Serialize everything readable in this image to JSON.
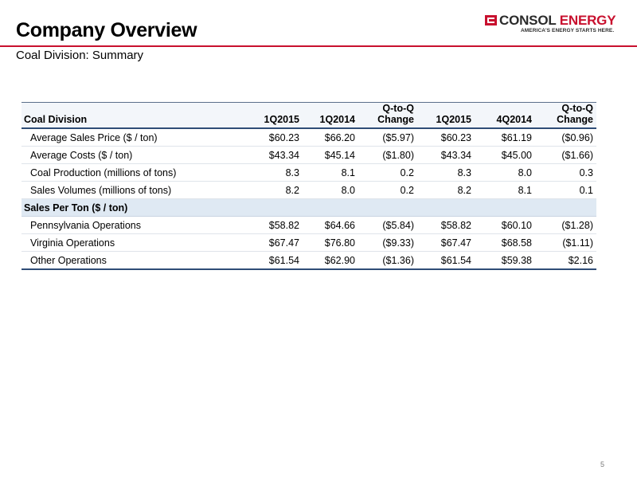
{
  "header": {
    "title": "Company Overview",
    "subtitle": "Coal Division: Summary"
  },
  "logo": {
    "name_part1": "CONSOL",
    "name_part2": "ENERGY",
    "tagline": "AMERICA'S ENERGY STARTS HERE.",
    "colors": {
      "red": "#c8102e",
      "dark": "#2b2b2b"
    }
  },
  "table": {
    "headers": [
      "Coal Division",
      "1Q2015",
      "1Q2014",
      "Q-to-Q Change",
      "1Q2015",
      "4Q2014",
      "Q-to-Q Change"
    ],
    "rows": [
      {
        "label": "Average Sales Price ($ / ton)",
        "values": [
          "$60.23",
          "$66.20",
          "($5.97)",
          "$60.23",
          "$61.19",
          "($0.96)"
        ]
      },
      {
        "label": "Average Costs ($ / ton)",
        "values": [
          "$43.34",
          "$45.14",
          "($1.80)",
          "$43.34",
          "$45.00",
          "($1.66)"
        ]
      },
      {
        "label": "Coal Production (millions of tons)",
        "values": [
          "8.3",
          "8.1",
          "0.2",
          "8.3",
          "8.0",
          "0.3"
        ]
      },
      {
        "label": "Sales Volumes (millions of tons)",
        "values": [
          "8.2",
          "8.0",
          "0.2",
          "8.2",
          "8.1",
          "0.1"
        ]
      }
    ],
    "section_label": "Sales Per Ton ($ / ton)",
    "section_rows": [
      {
        "label": "Pennsylvania Operations",
        "values": [
          "$58.82",
          "$64.66",
          "($5.84)",
          "$58.82",
          "$60.10",
          "($1.28)"
        ]
      },
      {
        "label": "Virginia Operations",
        "values": [
          "$67.47",
          "$76.80",
          "($9.33)",
          "$67.47",
          "$68.58",
          "($1.11)"
        ]
      },
      {
        "label": "Other Operations",
        "values": [
          "$61.54",
          "$62.90",
          "($1.36)",
          "$61.54",
          "$59.38",
          "$2.16"
        ]
      }
    ]
  },
  "footer": {
    "page_number": "5"
  }
}
